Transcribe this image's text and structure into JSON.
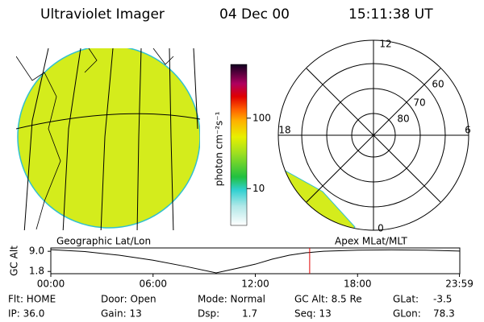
{
  "header": {
    "title": "Ultraviolet Imager",
    "date": "04 Dec 00",
    "time": "15:11:38 UT"
  },
  "colorbar": {
    "label": "photon cm⁻²s⁻¹",
    "scale": "log",
    "lim": [
      3,
      580
    ],
    "ticks": [
      10,
      100
    ]
  },
  "polar_plot": {
    "mlt_labels": [
      "12",
      "6",
      "0",
      "18"
    ],
    "lat_labels": [
      "60",
      "70",
      "80"
    ]
  },
  "geo_label": "Geographic Lat/Lon",
  "apex_label": "Apex MLat/MLT",
  "altitude_plot": {
    "ylabel": "GC Alt",
    "x": [
      0,
      2,
      4,
      6,
      8,
      9.7,
      11,
      12,
      13,
      14,
      15,
      16,
      18,
      20,
      22,
      23.98
    ],
    "values": [
      9.6,
      8.9,
      7.6,
      5.8,
      3.5,
      1.3,
      3.0,
      4.4,
      6.2,
      7.6,
      8.5,
      9.0,
      9.4,
      9.5,
      9.4,
      9.1
    ],
    "color": "#000000",
    "marker_x": 15.19,
    "marker_color": "#e00000",
    "xlim": [
      0,
      24
    ],
    "xticks": [
      {
        "value": 0,
        "label": "00:00"
      },
      {
        "value": 6,
        "label": "06:00"
      },
      {
        "value": 12,
        "label": "12:00"
      },
      {
        "value": 18,
        "label": "18:00"
      },
      {
        "value": 23.98,
        "label": "23:59"
      }
    ],
    "ylim": [
      1.0,
      10.2
    ],
    "yticks": [
      {
        "value": 9,
        "label": "9.0"
      },
      1.8
    ]
  },
  "status": [
    [
      "Flt: HOME",
      "IP: 36.0"
    ],
    [
      "Door: Open",
      "Gain: 13"
    ],
    [
      "Mode: Normal",
      "Dsp:",
      "1.7"
    ],
    [
      "GC Alt: 8.5 Re",
      "Seq: 13"
    ],
    [
      "GLat:",
      "-3.5",
      "GLon:",
      "78.3"
    ]
  ]
}
